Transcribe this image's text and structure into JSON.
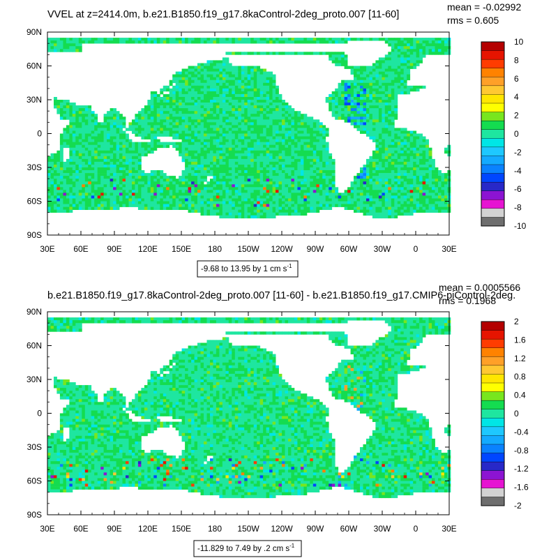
{
  "panels": [
    {
      "title": "VVEL at z=2414.0m, b.e21.B1850.f19_g17.8kaControl-2deg_proto.007 [11-60]",
      "mean_label": "mean = -0.02992",
      "rms_label": "rms = 0.605",
      "range_label": "-9.68 to 13.95 by 1 cm s",
      "range_sup": "-1",
      "x_tick_labels": [
        "30E",
        "60E",
        "90E",
        "120E",
        "150E",
        "180",
        "150W",
        "120W",
        "90W",
        "60W",
        "30W",
        "0",
        "30E"
      ],
      "y_tick_labels": [
        "90N",
        "60N",
        "30N",
        "0",
        "30S",
        "60S",
        "90S"
      ],
      "colorbar_labels": [
        "10",
        "8",
        "6",
        "4",
        "2",
        "0",
        "-2",
        "-4",
        "-6",
        "-8",
        "-10"
      ],
      "seed": 11
    },
    {
      "title": "b.e21.B1850.f19_g17.8kaControl-2deg_proto.007 [11-60] - b.e21.B1850.f19_g17.CMIP6-piControl-2deg.",
      "mean_label": "mean = 0.0005566",
      "rms_label": "rms = 0.1968",
      "range_label": "-11.829 to 7.49 by .2 cm s",
      "range_sup": "-1",
      "x_tick_labels": [
        "30E",
        "60E",
        "90E",
        "120E",
        "150E",
        "180",
        "150W",
        "120W",
        "90W",
        "60W",
        "30W",
        "0",
        "30E"
      ],
      "y_tick_labels": [
        "90N",
        "60N",
        "30N",
        "0",
        "30S",
        "60S",
        "90S"
      ],
      "colorbar_labels": [
        "2",
        "1.6",
        "1.2",
        "0.8",
        "0.4",
        "0",
        "-0.4",
        "-0.8",
        "-1.2",
        "-1.6",
        "-2"
      ],
      "seed": 29
    }
  ],
  "chart_data": [
    {
      "type": "heatmap",
      "title": "VVEL at z=2414.0m, b.e21.B1850.f19_g17.8kaControl-2deg_proto.007 [11-60]",
      "x_range": [
        30,
        390
      ],
      "y_range": [
        -90,
        90
      ],
      "grid": false,
      "legend_placement": "right",
      "stats": {
        "mean": -0.02992,
        "rms": 0.605,
        "min": -9.68,
        "max": 13.95,
        "interval": 1,
        "units": "cm s-1"
      },
      "color_levels": [
        -10,
        -9,
        -8,
        -7,
        -6,
        -5,
        -4,
        -3,
        -2,
        -1,
        0,
        1,
        2,
        3,
        4,
        5,
        6,
        7,
        8,
        9,
        10
      ],
      "colors": [
        "#6e6e6e",
        "#d2d2d2",
        "#e614d2",
        "#8c14d2",
        "#2828c8",
        "#0046ff",
        "#0a82ff",
        "#14aaff",
        "#1ec8ff",
        "#00e6e6",
        "#1ee6a0",
        "#14dc50",
        "#78e61e",
        "#ffff00",
        "#ffe600",
        "#ffc832",
        "#ffa028",
        "#ff8200",
        "#ff3c00",
        "#e61400",
        "#b40000"
      ]
    },
    {
      "type": "heatmap",
      "title": "b.e21.B1850.f19_g17.8kaControl-2deg_proto.007 [11-60] - b.e21.B1850.f19_g17.CMIP6-piControl-2deg.",
      "x_range": [
        30,
        390
      ],
      "y_range": [
        -90,
        90
      ],
      "grid": false,
      "legend_placement": "right",
      "stats": {
        "mean": 0.0005566,
        "rms": 0.1968,
        "min": -11.829,
        "max": 7.49,
        "interval": 0.2,
        "units": "cm s-1"
      },
      "color_levels": [
        -2,
        -1.8,
        -1.6,
        -1.4,
        -1.2,
        -1,
        -0.8,
        -0.6,
        -0.4,
        -0.2,
        0,
        0.2,
        0.4,
        0.6,
        0.8,
        1,
        1.2,
        1.4,
        1.6,
        1.8,
        2
      ],
      "colors": [
        "#6e6e6e",
        "#d2d2d2",
        "#e614d2",
        "#8c14d2",
        "#2828c8",
        "#0046ff",
        "#0a82ff",
        "#14aaff",
        "#1ec8ff",
        "#00e6e6",
        "#1ee6a0",
        "#14dc50",
        "#78e61e",
        "#ffff00",
        "#ffe600",
        "#ffc832",
        "#ffa028",
        "#ff8200",
        "#ff3c00",
        "#e61400",
        "#b40000"
      ]
    }
  ]
}
